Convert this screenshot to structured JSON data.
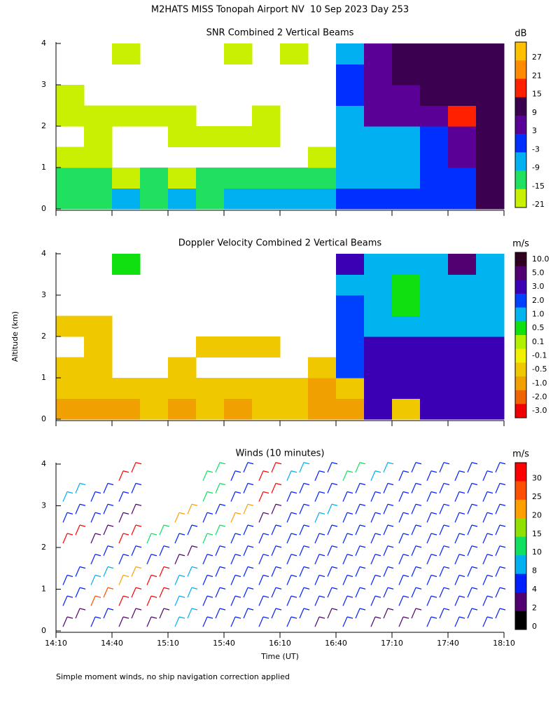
{
  "chart_data": [
    {
      "type": "heatmap",
      "title": "SNR Combined 2 Vertical Beams",
      "ylabel": "Altitude (km)",
      "ylim": [
        0,
        4
      ],
      "yticks": [
        0,
        1,
        2,
        3,
        4
      ],
      "colorbar": {
        "label": "dB",
        "levels": [
          27,
          21,
          15,
          9,
          3,
          -3,
          -9,
          -15,
          -21
        ],
        "colors": [
          "#ffc000",
          "#ff8c00",
          "#ff2000",
          "#3c0050",
          "#5a0096",
          "#0030ff",
          "#00b0f0",
          "#20e060",
          "#c8f000"
        ]
      },
      "z": [
        [
          -12,
          -12,
          -9,
          -12,
          -9,
          -12,
          -9,
          -9,
          -6,
          -6,
          -3,
          -3,
          -3,
          -3,
          0,
          9
        ],
        [
          -15,
          -15,
          -18,
          -15,
          -18,
          -15,
          -15,
          -15,
          -15,
          -12,
          -6,
          -6,
          -6,
          -3,
          0,
          9
        ],
        [
          -21,
          -18,
          null,
          null,
          null,
          null,
          null,
          null,
          null,
          -18,
          -9,
          -9,
          -6,
          -3,
          3,
          9
        ],
        [
          null,
          -21,
          null,
          null,
          -21,
          -21,
          -21,
          -21,
          null,
          null,
          -9,
          -9,
          -9,
          -3,
          3,
          9
        ],
        [
          -18,
          -21,
          -21,
          -21,
          -21,
          null,
          null,
          -21,
          null,
          null,
          -6,
          3,
          3,
          3,
          15,
          9
        ],
        [
          -21,
          null,
          null,
          null,
          null,
          null,
          null,
          null,
          null,
          null,
          -3,
          6,
          6,
          9,
          9,
          9
        ],
        [
          null,
          null,
          null,
          null,
          null,
          null,
          null,
          null,
          null,
          null,
          -3,
          6,
          9,
          9,
          9,
          9
        ],
        [
          null,
          null,
          -21,
          null,
          null,
          null,
          -21,
          null,
          -21,
          null,
          -6,
          3,
          9,
          9,
          9,
          9
        ]
      ]
    },
    {
      "type": "heatmap",
      "title": "Doppler Velocity Combined 2 Vertical Beams",
      "ylim": [
        0,
        4
      ],
      "yticks": [
        0,
        1,
        2,
        3,
        4
      ],
      "colorbar": {
        "label": "m/s",
        "levels": [
          {
            "value": 10,
            "label": "10.0"
          },
          {
            "value": 5,
            "label": "5.0"
          },
          {
            "value": 3,
            "label": "3.0"
          },
          {
            "value": 2,
            "label": "2.0"
          },
          {
            "value": 1,
            "label": "1.0"
          },
          0.5,
          0.1,
          -0.1,
          -0.5,
          {
            "value": -1,
            "label": "-1.0"
          },
          {
            "value": -2,
            "label": "-2.0"
          },
          {
            "value": -3,
            "label": "-3.0"
          }
        ],
        "colors": [
          "#300020",
          "#500070",
          "#3c00b4",
          "#0040ff",
          "#00b4f0",
          "#10e010",
          "#b0f000",
          "#f0f000",
          "#f0c800",
          "#f0a000",
          "#f06400",
          "#f00000"
        ]
      },
      "z": [
        [
          -0.7,
          -0.7,
          -0.7,
          -0.5,
          -0.7,
          -0.5,
          -0.7,
          -0.5,
          -0.5,
          -0.7,
          -0.7,
          3.5,
          -0.3,
          3.5,
          4,
          4
        ],
        [
          -0.3,
          -0.5,
          -0.5,
          -0.3,
          -0.5,
          -0.3,
          -0.3,
          -0.3,
          -0.5,
          -0.7,
          -0.5,
          3.5,
          3.5,
          3.5,
          4,
          4
        ],
        [
          -0.2,
          -0.3,
          null,
          null,
          -0.3,
          null,
          null,
          null,
          null,
          -0.5,
          2.5,
          3.5,
          3.5,
          3.5,
          4,
          4
        ],
        [
          null,
          -0.2,
          null,
          null,
          null,
          -0.2,
          -0.2,
          -0.2,
          null,
          null,
          2.5,
          3.5,
          3.5,
          3.5,
          4,
          4
        ],
        [
          -0.2,
          -0.2,
          null,
          null,
          null,
          null,
          null,
          null,
          null,
          null,
          2.5,
          1.5,
          1.5,
          1.5,
          1.5,
          1.5
        ],
        [
          null,
          null,
          null,
          null,
          null,
          null,
          null,
          null,
          null,
          null,
          2.5,
          1.5,
          0.7,
          1.5,
          1.5,
          1.5
        ],
        [
          null,
          null,
          null,
          null,
          null,
          null,
          null,
          null,
          null,
          null,
          1.5,
          1.5,
          0.7,
          1.5,
          1.5,
          1.5
        ],
        [
          null,
          null,
          0.7,
          null,
          null,
          null,
          null,
          null,
          null,
          null,
          3.5,
          1.5,
          1.5,
          1.5,
          6,
          1.5
        ]
      ]
    },
    {
      "type": "barbs",
      "title": "Winds (10 minutes)",
      "xlabel": "Time (UT)",
      "ylim": [
        0,
        4
      ],
      "yticks": [
        0,
        1,
        2,
        3,
        4
      ],
      "xticks": [
        "14:10",
        "14:40",
        "15:10",
        "15:40",
        "16:10",
        "16:40",
        "17:10",
        "17:40",
        "18:10"
      ],
      "colorbar": {
        "label": "m/s",
        "levels": [
          30,
          25,
          20,
          15,
          10,
          8,
          4,
          2,
          0
        ],
        "colors": [
          "#ff0000",
          "#ff5000",
          "#ffa000",
          "#90e000",
          "#10e060",
          "#00b0f0",
          "#0020ff",
          "#500070",
          "#000000"
        ]
      },
      "z": [
        [
          2,
          4,
          2,
          3,
          8,
          4,
          4,
          4,
          4,
          2,
          4,
          2,
          2,
          4,
          4,
          4
        ],
        [
          4,
          25,
          30,
          30,
          8,
          4,
          4,
          4,
          4,
          4,
          4,
          4,
          4,
          4,
          4,
          4
        ],
        [
          4,
          8,
          20,
          30,
          8,
          4,
          4,
          4,
          4,
          4,
          4,
          4,
          4,
          4,
          4,
          4
        ],
        [
          null,
          4,
          4,
          4,
          2,
          4,
          4,
          4,
          4,
          4,
          4,
          4,
          4,
          4,
          4,
          4
        ],
        [
          30,
          2,
          30,
          10,
          4,
          10,
          4,
          4,
          4,
          4,
          4,
          4,
          4,
          4,
          4,
          4
        ],
        [
          4,
          4,
          2,
          null,
          20,
          4,
          20,
          2,
          4,
          8,
          4,
          4,
          4,
          4,
          4,
          4
        ],
        [
          8,
          4,
          4,
          null,
          null,
          10,
          4,
          30,
          4,
          4,
          4,
          4,
          4,
          4,
          4,
          4
        ],
        [
          null,
          null,
          30,
          null,
          null,
          10,
          4,
          30,
          8,
          4,
          10,
          8,
          4,
          4,
          4,
          4
        ]
      ]
    }
  ],
  "title": "M2HATS MISS Tonopah Airport NV  10 Sep 2023 Day 253",
  "footnote": "Simple moment winds, no ship navigation correction applied"
}
